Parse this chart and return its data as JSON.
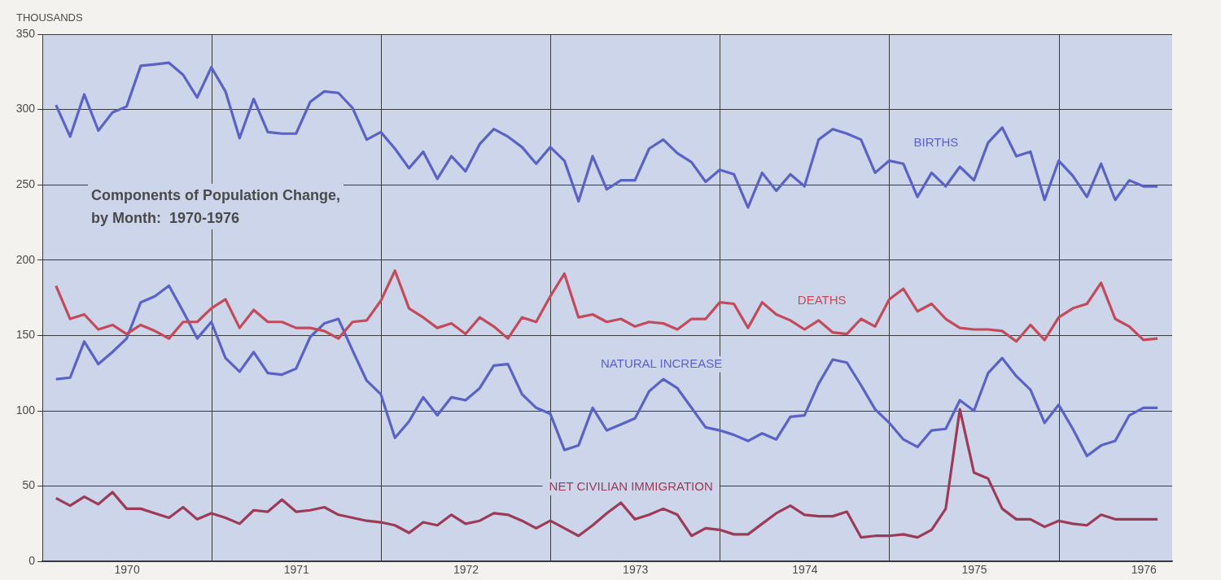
{
  "chart_data": {
    "type": "line",
    "title": "Components of Population Change,\nby Month:  1970-1976",
    "ylabel": "THOUSANDS",
    "x": [
      "1970-01-31",
      "1970-02-28",
      "1970-03-31",
      "1970-04-30",
      "1970-05-31",
      "1970-06-30",
      "1970-07-31",
      "1970-08-31",
      "1970-09-30",
      "1970-10-31",
      "1970-11-30",
      "1970-12-31",
      "1971-01-31",
      "1971-02-28",
      "1971-03-31",
      "1971-04-30",
      "1971-05-31",
      "1971-06-30",
      "1971-07-31",
      "1971-08-31",
      "1971-09-30",
      "1971-10-31",
      "1971-11-30",
      "1971-12-31",
      "1972-01-31",
      "1972-02-29",
      "1972-03-31",
      "1972-04-30",
      "1972-05-31",
      "1972-06-30",
      "1972-07-31",
      "1972-08-31",
      "1972-09-30",
      "1972-10-31",
      "1972-11-30",
      "1972-12-31",
      "1973-01-31",
      "1973-02-28",
      "1973-03-31",
      "1973-04-30",
      "1973-05-31",
      "1973-06-30",
      "1973-07-31",
      "1973-08-31",
      "1973-09-30",
      "1973-10-31",
      "1973-11-30",
      "1973-12-31",
      "1974-01-31",
      "1974-02-28",
      "1974-03-31",
      "1974-04-30",
      "1974-05-31",
      "1974-06-30",
      "1974-07-31",
      "1974-08-31",
      "1974-09-30",
      "1974-10-31",
      "1974-11-30",
      "1974-12-31",
      "1975-01-31",
      "1975-02-28",
      "1975-03-31",
      "1975-04-30",
      "1975-05-31",
      "1975-06-30",
      "1975-07-31",
      "1975-08-31",
      "1975-09-30",
      "1975-10-31",
      "1975-11-30",
      "1975-12-31",
      "1976-01-31",
      "1976-02-29",
      "1976-03-31",
      "1976-04-30",
      "1976-05-31",
      "1976-06-30",
      "1976-07-31"
    ],
    "series": [
      {
        "name": "BIRTHS",
        "color": "#5a62c6",
        "values": [
          303,
          282,
          310,
          286,
          298,
          302,
          329,
          330,
          331,
          323,
          308,
          328,
          312,
          281,
          307,
          285,
          284,
          284,
          305,
          312,
          311,
          301,
          280,
          285,
          274,
          261,
          272,
          254,
          269,
          259,
          277,
          287,
          282,
          275,
          264,
          275,
          266,
          239,
          269,
          247,
          253,
          253,
          274,
          280,
          271,
          265,
          252,
          260,
          257,
          235,
          258,
          246,
          257,
          249,
          280,
          287,
          284,
          280,
          258,
          266,
          264,
          242,
          258,
          249,
          262,
          253,
          278,
          288,
          269,
          272,
          240,
          266,
          256,
          242,
          264,
          240,
          253,
          249,
          249
        ]
      },
      {
        "name": "DEATHS",
        "color": "#c24a5a",
        "values": [
          183,
          161,
          164,
          154,
          157,
          151,
          157,
          153,
          148,
          159,
          159,
          168,
          174,
          155,
          167,
          159,
          159,
          155,
          155,
          153,
          148,
          159,
          160,
          173,
          193,
          168,
          162,
          155,
          158,
          151,
          162,
          156,
          148,
          162,
          159,
          176,
          191,
          162,
          164,
          159,
          161,
          156,
          159,
          158,
          154,
          161,
          161,
          172,
          171,
          155,
          172,
          164,
          160,
          154,
          160,
          152,
          151,
          161,
          156,
          174,
          181,
          166,
          171,
          161,
          155,
          154,
          154,
          153,
          146,
          157,
          147,
          162,
          168,
          171,
          185,
          161,
          156,
          147,
          148
        ]
      },
      {
        "name": "NATURAL INCREASE",
        "color": "#5a62c6",
        "values": [
          121,
          122,
          146,
          131,
          139,
          148,
          172,
          176,
          183,
          166,
          148,
          159,
          135,
          126,
          139,
          125,
          124,
          128,
          149,
          158,
          161,
          140,
          120,
          111,
          82,
          93,
          109,
          97,
          109,
          107,
          115,
          130,
          131,
          111,
          102,
          98,
          74,
          77,
          102,
          87,
          91,
          95,
          113,
          121,
          115,
          102,
          89,
          87,
          84,
          80,
          85,
          81,
          96,
          97,
          118,
          134,
          132,
          117,
          101,
          92,
          81,
          76,
          87,
          88,
          107,
          100,
          125,
          135,
          123,
          114,
          92,
          104,
          88,
          70,
          77,
          80,
          97,
          102,
          102
        ]
      },
      {
        "name": "NET CIVILIAN IMMIGRATION",
        "color": "#9c3b58",
        "values": [
          42,
          37,
          43,
          38,
          46,
          35,
          35,
          32,
          29,
          36,
          28,
          32,
          29,
          25,
          34,
          33,
          41,
          33,
          34,
          36,
          31,
          29,
          27,
          26,
          24,
          19,
          26,
          24,
          31,
          25,
          27,
          32,
          31,
          27,
          22,
          27,
          22,
          17,
          24,
          32,
          39,
          28,
          31,
          35,
          31,
          17,
          22,
          21,
          18,
          18,
          25,
          32,
          37,
          31,
          30,
          30,
          33,
          16,
          17,
          17,
          18,
          16,
          21,
          35,
          101,
          59,
          55,
          35,
          28,
          28,
          23,
          27,
          25,
          24,
          31,
          28,
          28,
          28,
          28
        ]
      }
    ],
    "xlim": [
      "1970-01-01",
      "1976-09-01"
    ],
    "xticks": [
      {
        "value": "1970-07-01",
        "label": "1970"
      },
      {
        "value": "1971-01-01",
        "label": null
      },
      {
        "value": "1971-07-01",
        "label": "1971"
      },
      {
        "value": "1972-01-01",
        "label": null
      },
      {
        "value": "1972-07-01",
        "label": "1972"
      },
      {
        "value": "1973-01-01",
        "label": null
      },
      {
        "value": "1973-07-01",
        "label": "1973"
      },
      {
        "value": "1974-01-01",
        "label": null
      },
      {
        "value": "1974-07-01",
        "label": "1974"
      },
      {
        "value": "1975-01-01",
        "label": null
      },
      {
        "value": "1975-07-01",
        "label": "1975"
      },
      {
        "value": "1976-01-01",
        "label": null
      },
      {
        "value": "1976-07-01",
        "label": "1976"
      }
    ],
    "ylim": [
      0,
      350
    ],
    "yticks": [
      0,
      50,
      100,
      150,
      200,
      250,
      300,
      350
    ],
    "grid": true,
    "legend": false,
    "marker": "none",
    "line_style": "solid"
  }
}
